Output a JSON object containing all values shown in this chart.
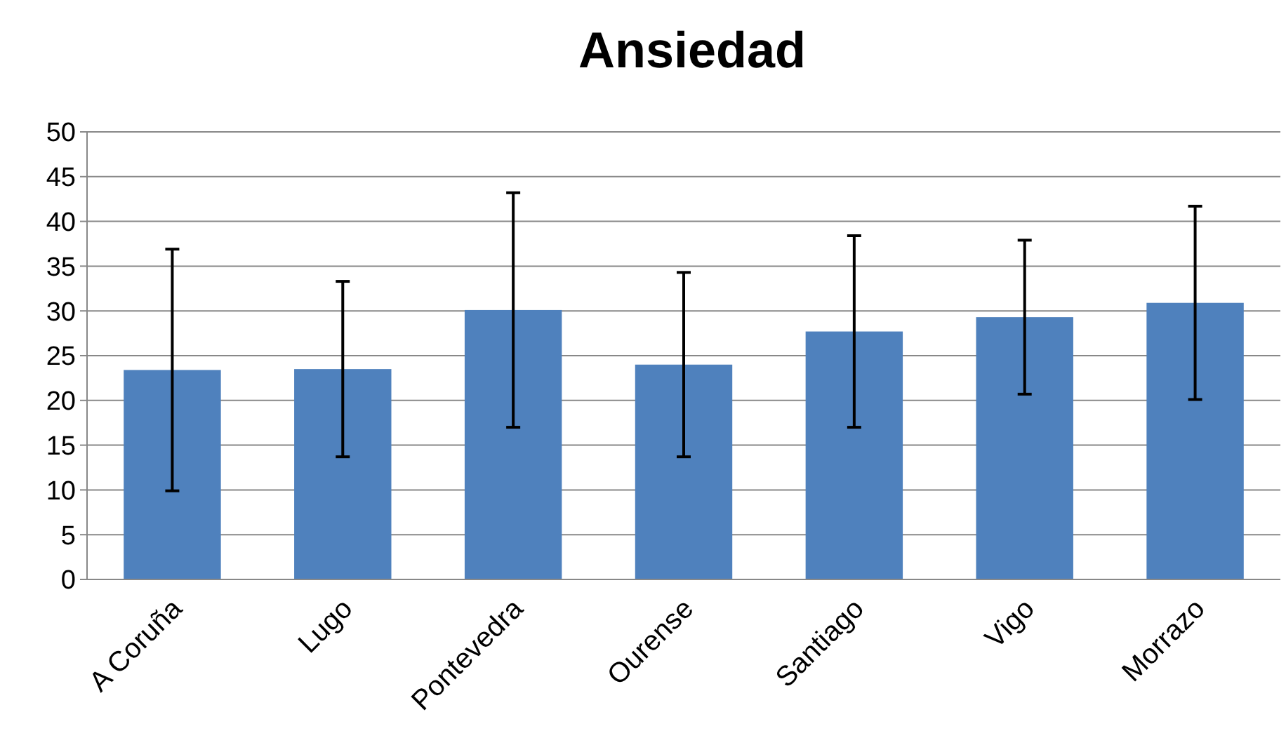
{
  "chart_data": {
    "type": "bar",
    "title": "Ansiedad",
    "categories": [
      "A Coruña",
      "Lugo",
      "Pontevedra",
      "Ourense",
      "Santiago",
      "Vigo",
      "Morrazo"
    ],
    "values": [
      23.4,
      23.5,
      30.1,
      24.0,
      27.7,
      29.3,
      30.9
    ],
    "errors": [
      13.5,
      9.8,
      13.1,
      10.3,
      10.7,
      8.6,
      10.8
    ],
    "color": "#4f81bd",
    "ylim": [
      0,
      50
    ],
    "yticks": [
      0,
      5,
      10,
      15,
      20,
      25,
      30,
      35,
      40,
      45,
      50
    ],
    "grid": "y"
  }
}
